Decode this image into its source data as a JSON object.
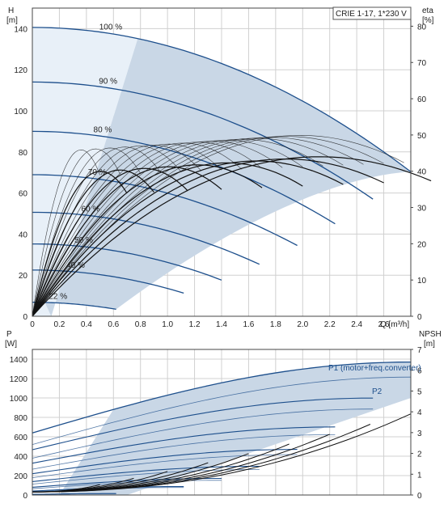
{
  "colors": {
    "curve_dark": "#1d4f8c",
    "region_fill": "#c9d7e6",
    "region_light": "#e8f0f8",
    "grid": "#d0d0d0",
    "axis": "#444444",
    "black": "#111111"
  },
  "chart_data": [
    {
      "type": "line",
      "title": "",
      "model_label": "CRIE 1-17, 1*230 V",
      "xlabel": "Q [m³/h]",
      "ylabel_left": "H [m]",
      "ylabel_right": "eta [%]",
      "yleft_title": "H",
      "yleft_unit": "[m]",
      "yright_title": "eta",
      "yright_unit": "[%]",
      "xlim": [
        0,
        2.8
      ],
      "ylim_left": [
        0,
        150
      ],
      "ylim_right": [
        0,
        85
      ],
      "x_ticks": [
        "0",
        "0.2",
        "0.4",
        "0.6",
        "0.8",
        "1.0",
        "1.2",
        "1.4",
        "1.6",
        "1.8",
        "2.0",
        "2.2",
        "2.4",
        "2.6"
      ],
      "x_unit_label": "Q [m³/h]",
      "yleft_ticks": [
        "0",
        "20",
        "40",
        "60",
        "80",
        "100",
        "120",
        "140"
      ],
      "yright_ticks": [
        "0",
        "10",
        "20",
        "30",
        "40",
        "50",
        "60",
        "70",
        "80"
      ],
      "grid": true,
      "head_curves": [
        {
          "label": "100 %",
          "q_max": 2.8,
          "h0": 140.6
        },
        {
          "label": "90 %",
          "q_max": 2.52,
          "h0": 114.0
        },
        {
          "label": "80 %",
          "q_max": 2.24,
          "h0": 90.0
        },
        {
          "label": "70 %",
          "q_max": 1.96,
          "h0": 68.9
        },
        {
          "label": "60 %",
          "q_max": 1.68,
          "h0": 50.6
        },
        {
          "label": "50 %",
          "q_max": 1.4,
          "h0": 35.2
        },
        {
          "label": "40 %",
          "q_max": 1.12,
          "h0": 22.5
        },
        {
          "label": "22 %",
          "q_max": 0.62,
          "h0": 6.8
        }
      ],
      "efficiency_peak_pct": 50
    },
    {
      "type": "line",
      "title": "",
      "xlabel": "Q [m³/h]",
      "ylabel_left": "P [W]",
      "ylabel_right": "NPSH [m]",
      "yleft_title": "P",
      "yleft_unit": "[W]",
      "yright_title": "NPSH",
      "yright_unit": "[m]",
      "xlim": [
        0,
        2.8
      ],
      "ylim_left": [
        0,
        1500
      ],
      "ylim_right": [
        0,
        7
      ],
      "yleft_ticks": [
        "0",
        "200",
        "400",
        "600",
        "800",
        "1000",
        "1200",
        "1400"
      ],
      "yright_ticks": [
        "0",
        "1",
        "2",
        "3",
        "4",
        "5",
        "6",
        "7"
      ],
      "grid": true,
      "series": [
        {
          "name": "P1 (motor+freq.converter)",
          "p_start": 640,
          "p_end": 1370
        },
        {
          "name": "P2",
          "p_start": 520,
          "p_end": 1215
        }
      ],
      "npsh_max": 3.9
    }
  ]
}
